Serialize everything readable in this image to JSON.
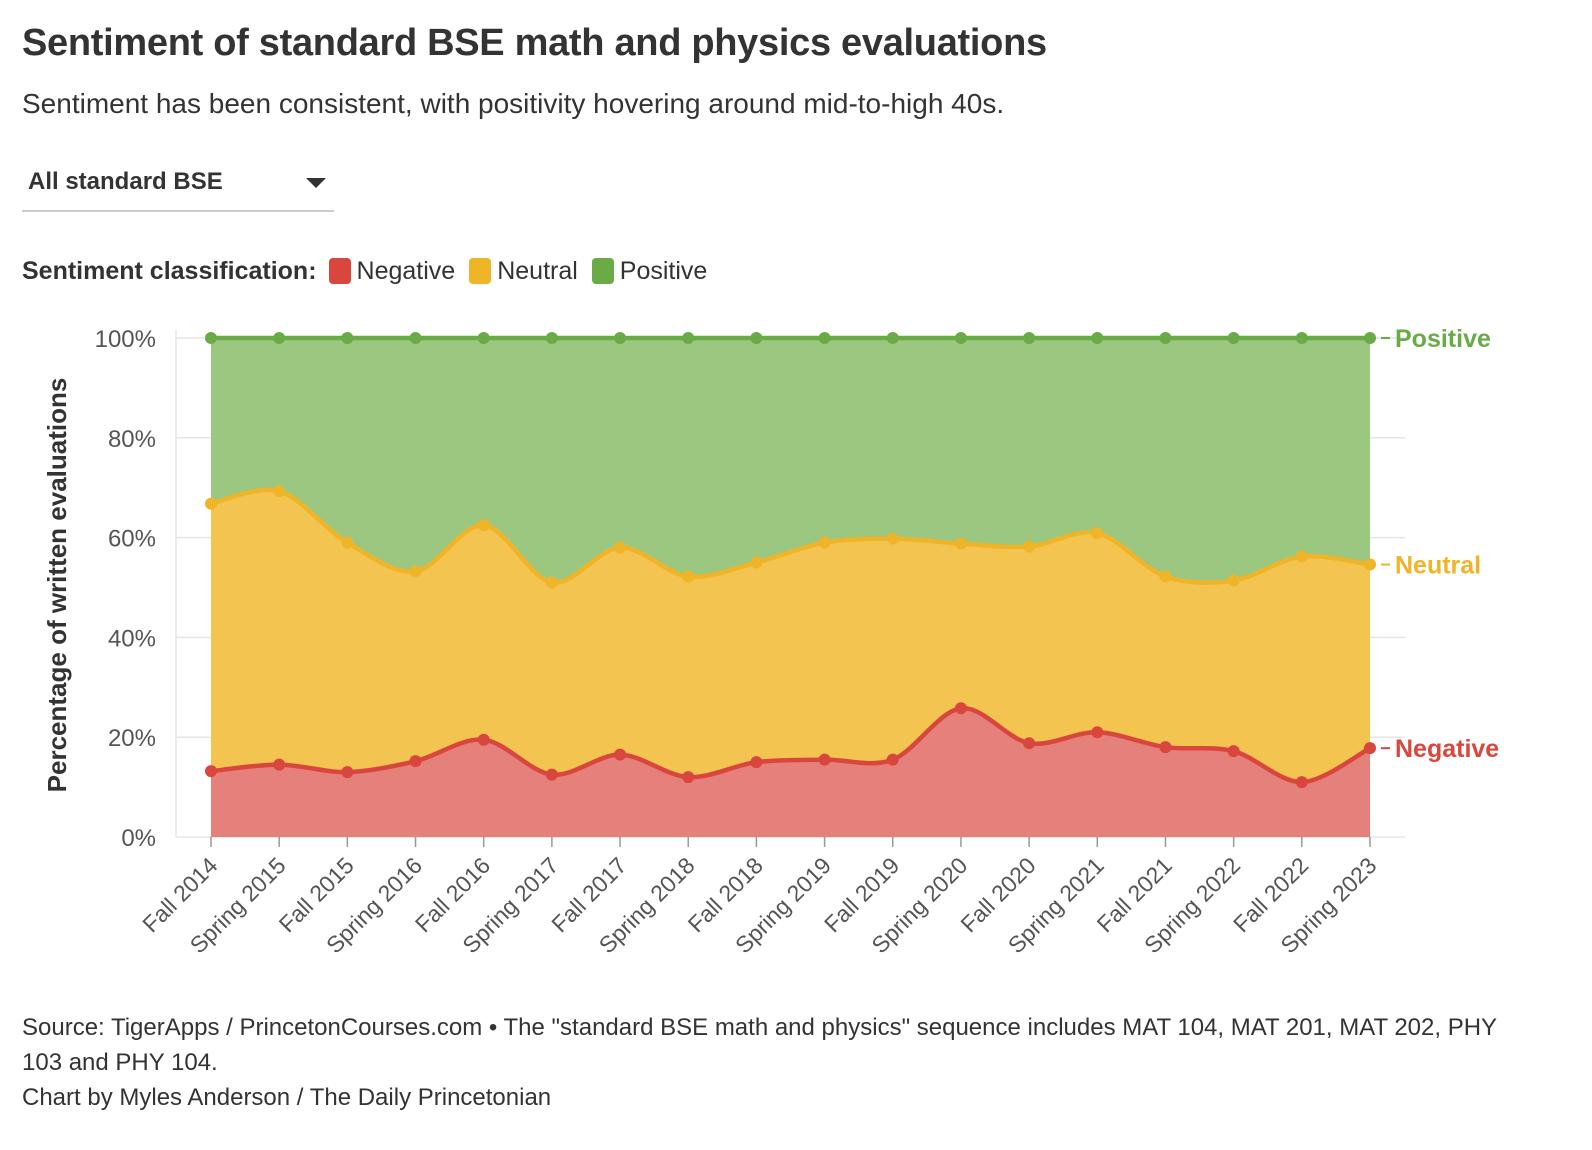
{
  "title": "Sentiment of standard BSE math and physics evaluations",
  "subtitle": "Sentiment has been consistent, with positivity hovering around mid-to-high 40s.",
  "dropdown": {
    "selected": "All standard BSE"
  },
  "legend": {
    "title": "Sentiment classification:",
    "items": [
      {
        "label": "Negative",
        "color": "#d9463e"
      },
      {
        "label": "Neutral",
        "color": "#f0b429"
      },
      {
        "label": "Positive",
        "color": "#6aaa47"
      }
    ]
  },
  "footer": {
    "source": "Source: TigerApps / PrincetonCourses.com • The \"standard BSE math and physics\" sequence includes MAT 104, MAT 201, MAT 202, PHY 103 and PHY 104.",
    "credit": "Chart by Myles Anderson / The Daily Princetonian"
  },
  "colors": {
    "negative_fill": "#e6807a",
    "negative_line": "#d9463e",
    "neutral_fill": "#f3c44f",
    "neutral_line": "#f0b429",
    "positive_fill": "#9cc781",
    "positive_line": "#6aaa47",
    "grid": "#e6e6e6",
    "axis_text": "#555555"
  },
  "chart_data": {
    "type": "area",
    "stacked": true,
    "title": "Sentiment of standard BSE math and physics evaluations",
    "ylabel": "Percentage of written evaluations",
    "xlabel": "",
    "ylim": [
      0,
      100
    ],
    "yticks": [
      "0%",
      "20%",
      "40%",
      "60%",
      "80%",
      "100%"
    ],
    "categories": [
      "Fall 2014",
      "Spring 2015",
      "Fall 2015",
      "Spring 2016",
      "Fall 2016",
      "Spring 2017",
      "Fall 2017",
      "Spring 2018",
      "Fall 2018",
      "Spring 2019",
      "Fall 2019",
      "Spring 2020",
      "Fall 2020",
      "Spring 2021",
      "Fall 2021",
      "Spring 2022",
      "Fall 2022",
      "Spring 2023"
    ],
    "series": [
      {
        "name": "Negative",
        "end_label": "Negative",
        "values": [
          13.2,
          14.5,
          13.0,
          15.2,
          19.5,
          12.5,
          16.5,
          12.0,
          15.0,
          15.5,
          15.5,
          25.8,
          18.8,
          21.0,
          18.0,
          17.2,
          11.0,
          17.8
        ]
      },
      {
        "name": "Neutral",
        "end_label": "Neutral",
        "values": [
          53.6,
          54.8,
          46.0,
          38.0,
          43.0,
          38.5,
          41.5,
          40.2,
          40.0,
          43.5,
          44.3,
          33.0,
          39.4,
          39.9,
          34.2,
          34.2,
          45.2,
          36.8
        ]
      },
      {
        "name": "Positive",
        "end_label": "Positive",
        "values": [
          33.2,
          30.7,
          41.0,
          46.8,
          37.5,
          49.0,
          42.0,
          47.8,
          45.0,
          41.0,
          40.2,
          41.2,
          41.8,
          39.1,
          47.8,
          48.6,
          43.8,
          45.4
        ]
      }
    ]
  }
}
